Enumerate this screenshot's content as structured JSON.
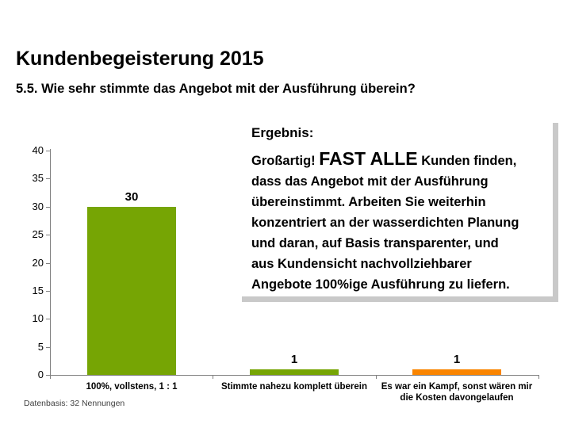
{
  "slide": {
    "title": "Kundenbegeisterung 2015",
    "subtitle": "5.5. Wie sehr stimmte das Angebot mit der Ausführung überein?",
    "footnote": "Datenbasis: 32 Nennungen"
  },
  "result_box": {
    "heading": "Ergebnis:",
    "shadow_color": "#c9c9c9",
    "lines": [
      [
        {
          "text": "Großartig! "
        },
        {
          "text": "FAST ALLE",
          "emphasis": true
        },
        {
          "text": " Kunden finden,"
        }
      ],
      [
        {
          "text": "dass das Angebot mit der Ausführung"
        }
      ],
      [
        {
          "text": "übereinstimmt. Arbeiten Sie weiterhin"
        }
      ],
      [
        {
          "text": "konzentriert an der wasserdichten Planung"
        }
      ],
      [
        {
          "text": "und daran, auf Basis transparenter, und"
        }
      ],
      [
        {
          "text": "aus Kundensicht nachvollziehbarer"
        }
      ],
      [
        {
          "text": "Angebote 100%ige Ausführung zu liefern."
        }
      ]
    ]
  },
  "chart_data": {
    "type": "bar",
    "title": "",
    "xlabel": "",
    "ylabel": "",
    "categories": [
      "100%, vollstens, 1 : 1",
      "Stimmte nahezu komplett überein",
      "Es war ein Kampf, sonst wären mir\ndie Kosten davongelaufen"
    ],
    "values": [
      30,
      1,
      1
    ],
    "data_labels": [
      "30",
      "1",
      "1"
    ],
    "bar_colors": [
      "#76A504",
      "#76A504",
      "#FA8500"
    ],
    "ylim": [
      0,
      40
    ],
    "ytick_step": 5,
    "grid": false,
    "legend": "none",
    "axis_color": "#808080"
  }
}
